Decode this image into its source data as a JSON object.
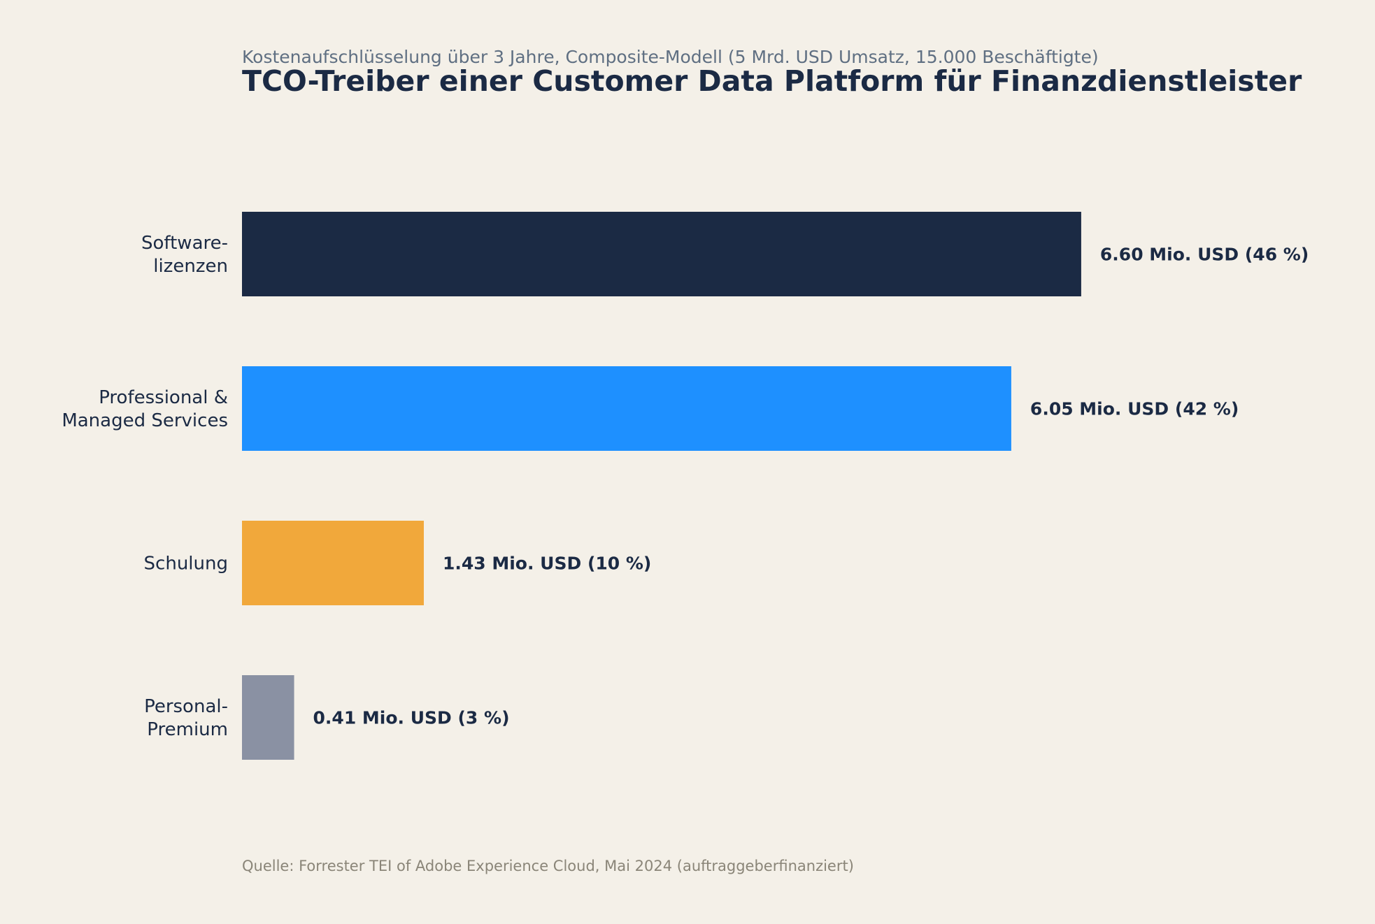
{
  "chart_data": {
    "type": "bar",
    "orientation": "horizontal",
    "subtitle": "Kostenaufschlüsselung über 3 Jahre, Composite-Modell (5 Mrd. USD Umsatz, 15.000 Beschäftigte)",
    "title": "TCO-Treiber einer Customer Data Platform für Finanzdienstleister",
    "xlabel": "",
    "ylabel": "",
    "grid": false,
    "legend": "none",
    "unit": "Mio. USD",
    "xlim": [
      0,
      7.2
    ],
    "categories": [
      [
        "Software-",
        "lizenzen"
      ],
      [
        "Professional &",
        "Managed Services"
      ],
      [
        "Schulung"
      ],
      [
        "Personal-",
        "Premium"
      ]
    ],
    "values": [
      6.6,
      6.05,
      1.43,
      0.41
    ],
    "value_labels": [
      "6.60 Mio. USD  (46 %)",
      "6.05 Mio. USD  (42 %)",
      "1.43 Mio. USD  (10 %)",
      "0.41 Mio. USD  (3 %)"
    ],
    "colors": [
      "#1b2a44",
      "#1e90ff",
      "#f1a83b",
      "#8a91a3"
    ],
    "source": "Quelle: Forrester TEI of Adobe Experience Cloud, Mai 2024 (auftraggeberfinanziert)"
  }
}
